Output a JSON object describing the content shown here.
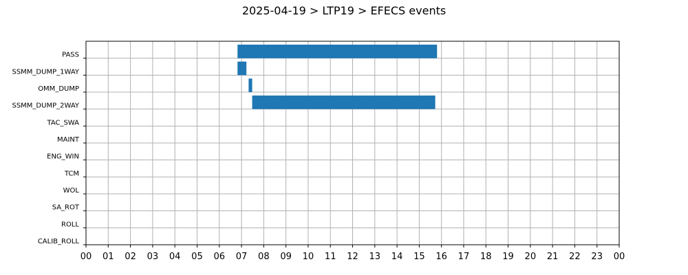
{
  "chart_data": {
    "type": "bar",
    "orientation": "horizontal",
    "title": "2025-04-19 > LTP19 > EFECS events",
    "xlabel": "",
    "ylabel": "",
    "xlim": [
      0,
      24
    ],
    "x_ticks": [
      "00",
      "01",
      "02",
      "03",
      "04",
      "05",
      "06",
      "07",
      "08",
      "09",
      "10",
      "11",
      "12",
      "13",
      "14",
      "15",
      "16",
      "17",
      "18",
      "19",
      "20",
      "21",
      "22",
      "23",
      "00"
    ],
    "grid": true,
    "bar_color": "#1f77b4",
    "categories": [
      "PASS",
      "SSMM_DUMP_1WAY",
      "OMM_DUMP",
      "SSMM_DUMP_2WAY",
      "TAC_SWA",
      "MAINT",
      "ENG_WIN",
      "TCM",
      "WOL",
      "SA_ROT",
      "ROLL",
      "CALIB_ROLL"
    ],
    "events": [
      {
        "category": "PASS",
        "start": 6.82,
        "end": 15.8
      },
      {
        "category": "SSMM_DUMP_1WAY",
        "start": 6.82,
        "end": 7.22
      },
      {
        "category": "OMM_DUMP",
        "start": 7.32,
        "end": 7.48
      },
      {
        "category": "SSMM_DUMP_2WAY",
        "start": 7.48,
        "end": 15.72
      }
    ]
  }
}
